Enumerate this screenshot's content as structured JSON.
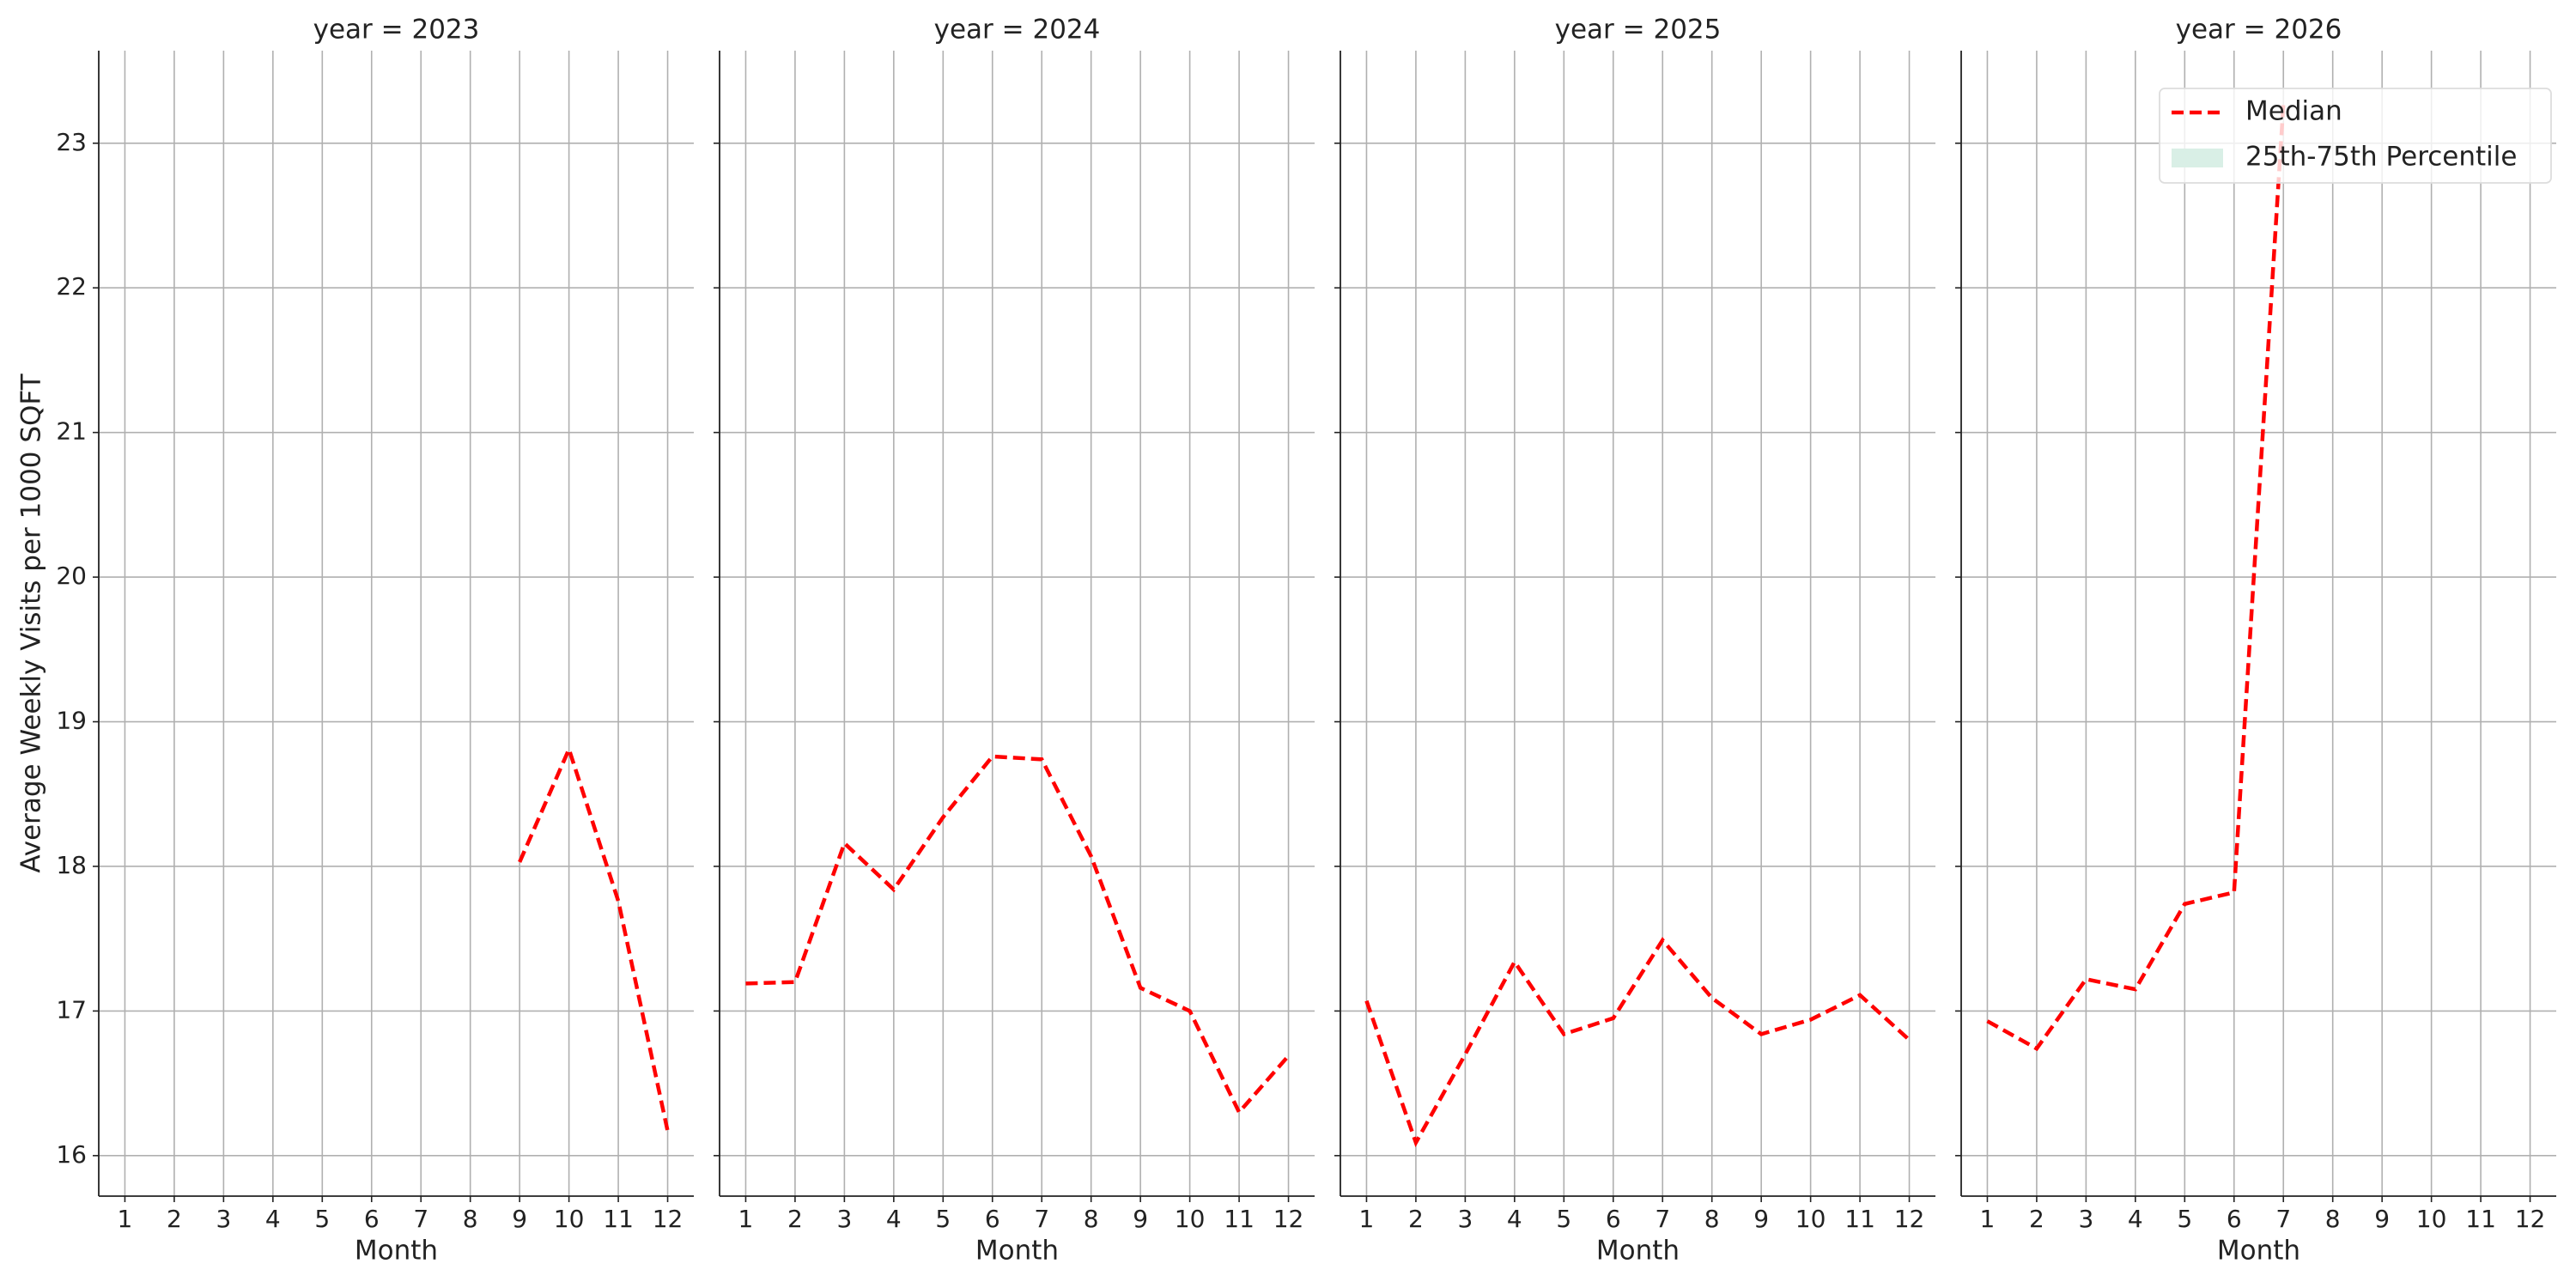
{
  "chart_data": [
    {
      "type": "line",
      "title": "year = 2023",
      "xlabel": "Month",
      "ylabel": "Average Weekly Visits per 1000 SQFT",
      "x": [
        1,
        2,
        3,
        4,
        5,
        6,
        7,
        8,
        9,
        10,
        11,
        12
      ],
      "series": [
        {
          "name": "Median",
          "color": "#ff0000",
          "values": [
            null,
            null,
            null,
            null,
            null,
            null,
            null,
            null,
            18.03,
            18.81,
            17.76,
            16.17
          ]
        }
      ],
      "xlim": [
        0.47,
        12.53
      ],
      "xticks": [
        1,
        2,
        3,
        4,
        5,
        6,
        7,
        8,
        9,
        10,
        11,
        12
      ],
      "ylim": [
        15.72,
        23.64
      ],
      "yticks": [
        16,
        17,
        18,
        19,
        20,
        21,
        22,
        23
      ],
      "grid": true
    },
    {
      "type": "line",
      "title": "year = 2024",
      "xlabel": "Month",
      "x": [
        1,
        2,
        3,
        4,
        5,
        6,
        7,
        8,
        9,
        10,
        11,
        12
      ],
      "series": [
        {
          "name": "Median",
          "color": "#ff0000",
          "values": [
            17.19,
            17.2,
            18.16,
            17.84,
            18.34,
            18.76,
            18.74,
            18.07,
            17.16,
            17.0,
            16.3,
            16.69
          ]
        }
      ],
      "xlim": [
        0.47,
        12.53
      ],
      "xticks": [
        1,
        2,
        3,
        4,
        5,
        6,
        7,
        8,
        9,
        10,
        11,
        12
      ],
      "ylim": [
        15.72,
        23.64
      ],
      "yticks": [
        16,
        17,
        18,
        19,
        20,
        21,
        22,
        23
      ],
      "grid": true
    },
    {
      "type": "line",
      "title": "year = 2025",
      "xlabel": "Month",
      "x": [
        1,
        2,
        3,
        4,
        5,
        6,
        7,
        8,
        9,
        10,
        11,
        12
      ],
      "series": [
        {
          "name": "Median",
          "color": "#ff0000",
          "values": [
            17.07,
            16.09,
            16.7,
            17.34,
            16.84,
            16.95,
            17.49,
            17.09,
            16.84,
            16.94,
            17.11,
            16.8
          ]
        }
      ],
      "xlim": [
        0.47,
        12.53
      ],
      "xticks": [
        1,
        2,
        3,
        4,
        5,
        6,
        7,
        8,
        9,
        10,
        11,
        12
      ],
      "ylim": [
        15.72,
        23.64
      ],
      "yticks": [
        16,
        17,
        18,
        19,
        20,
        21,
        22,
        23
      ],
      "grid": true
    },
    {
      "type": "line",
      "title": "year = 2026",
      "xlabel": "Month",
      "x": [
        1,
        2,
        3,
        4,
        5,
        6,
        7,
        8,
        9,
        10,
        11,
        12
      ],
      "series": [
        {
          "name": "Median",
          "color": "#ff0000",
          "values": [
            16.93,
            16.74,
            17.22,
            17.15,
            17.74,
            17.82,
            23.27,
            null,
            null,
            null,
            null,
            null
          ]
        }
      ],
      "band": {
        "name": "25th-75th Percentile",
        "color": "#d9efe6"
      },
      "legend": "upper right",
      "xlim": [
        0.47,
        12.53
      ],
      "xticks": [
        1,
        2,
        3,
        4,
        5,
        6,
        7,
        8,
        9,
        10,
        11,
        12
      ],
      "ylim": [
        15.72,
        23.64
      ],
      "yticks": [
        16,
        17,
        18,
        19,
        20,
        21,
        22,
        23
      ],
      "grid": true
    }
  ]
}
